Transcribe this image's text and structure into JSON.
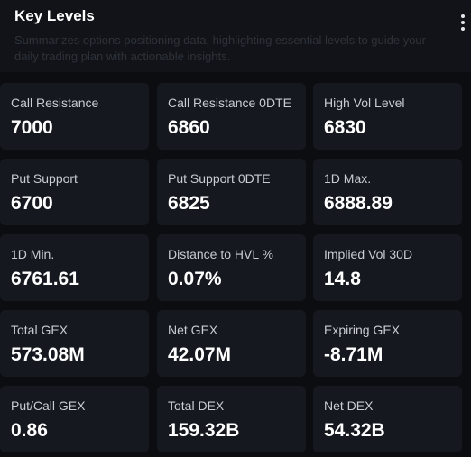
{
  "header": {
    "title": "Key Levels",
    "subtitle": "Summarizes options positioning data, highlighting essential levels to guide your daily trading plan with actionable insights.",
    "menu_icon": "more-vertical-icon"
  },
  "cards": [
    {
      "label": "Call Resistance",
      "value": "7000"
    },
    {
      "label": "Call Resistance 0DTE",
      "value": "6860"
    },
    {
      "label": "High Vol Level",
      "value": "6830"
    },
    {
      "label": "Put Support",
      "value": "6700"
    },
    {
      "label": "Put Support 0DTE",
      "value": "6825"
    },
    {
      "label": "1D Max.",
      "value": "6888.89"
    },
    {
      "label": "1D Min.",
      "value": "6761.61"
    },
    {
      "label": "Distance to HVL %",
      "value": "0.07%"
    },
    {
      "label": "Implied Vol 30D",
      "value": "14.8"
    },
    {
      "label": "Total GEX",
      "value": "573.08M"
    },
    {
      "label": "Net GEX",
      "value": "42.07M"
    },
    {
      "label": "Expiring GEX",
      "value": "-8.71M"
    },
    {
      "label": "Put/Call GEX",
      "value": "0.86"
    },
    {
      "label": "Total DEX",
      "value": "159.32B"
    },
    {
      "label": "Net DEX",
      "value": "54.32B"
    }
  ]
}
